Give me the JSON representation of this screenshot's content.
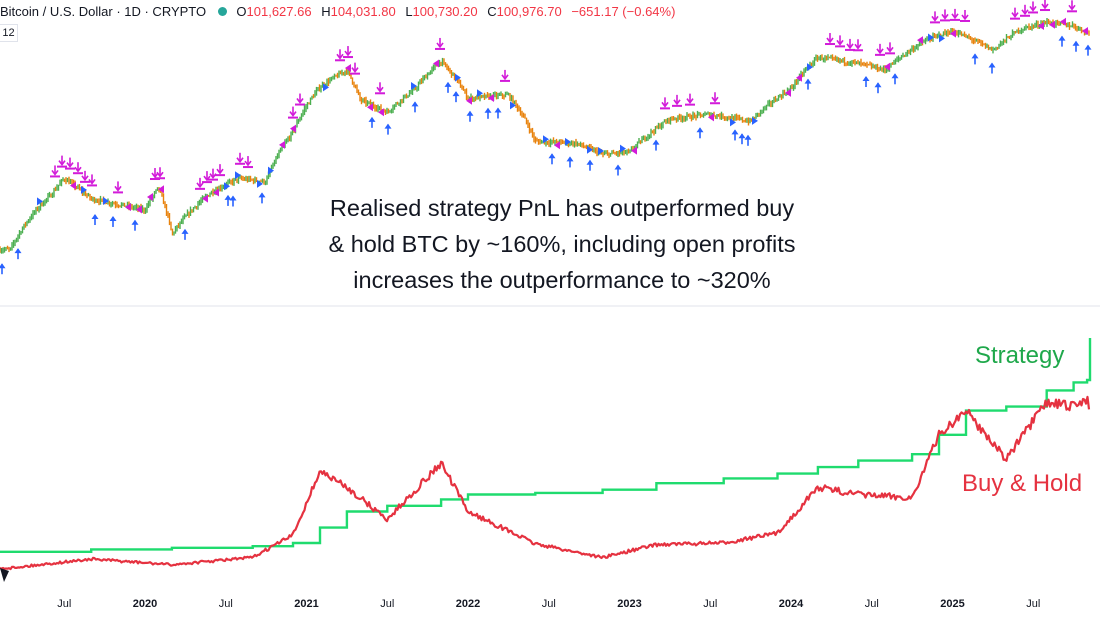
{
  "header": {
    "symbol": "Bitcoin / U.S. Dollar · 1D · CRYPTO",
    "open_key": "O",
    "open": "101,627.66",
    "high_key": "H",
    "high": "104,031.80",
    "low_key": "L",
    "low": "100,730.20",
    "close_key": "C",
    "close": "100,976.70",
    "change": "−651.17 (−0.64%)"
  },
  "badge": "12",
  "annotation": {
    "line1": "Realised strategy PnL has outperformed buy",
    "line2": "& hold BTC by ~160%, including open profits",
    "line3": "increases the outperformance to ~320%"
  },
  "legend": {
    "strategy": "Strategy",
    "buy_hold": "Buy & Hold"
  },
  "colors": {
    "strategy": "#1fdb6e",
    "buy_hold": "#e53240",
    "sell_marker": "#d21bd9",
    "buy_marker": "#2962ff",
    "price_up": "#4caf50",
    "price_down": "#e8820c"
  },
  "chart_data": [
    {
      "type": "line",
      "title": "",
      "x": [
        "2019-03",
        "2019-06",
        "2019-07",
        "2019-09",
        "2020-01",
        "2020-02",
        "2020-03",
        "2020-06",
        "2020-08",
        "2020-10",
        "2020-12",
        "2021-02",
        "2021-04",
        "2021-05",
        "2021-07",
        "2021-09",
        "2021-11",
        "2022-01",
        "2022-04",
        "2022-06",
        "2022-09",
        "2022-11",
        "2023-01",
        "2023-04",
        "2023-07",
        "2023-10",
        "2024-01",
        "2024-03",
        "2024-06",
        "2024-08",
        "2024-11",
        "2025-01",
        "2025-04",
        "2025-06",
        "2025-08",
        "2025-10",
        "2025-11"
      ],
      "series": [
        {
          "values": [
            4000,
            9000,
            11500,
            8500,
            7200,
            10000,
            5000,
            9500,
            11500,
            11000,
            23000,
            45000,
            58000,
            37000,
            31000,
            43000,
            66000,
            38000,
            40000,
            20000,
            19500,
            16500,
            17000,
            28000,
            30000,
            27000,
            44000,
            70000,
            64000,
            58000,
            90000,
            104000,
            78000,
            106000,
            118000,
            112000,
            101000
          ]
        }
      ],
      "xlabel": "",
      "ylabel": "",
      "scale": "log"
    },
    {
      "type": "line",
      "title": "",
      "x": [
        "2019-03",
        "2019-09",
        "2020-03",
        "2020-09",
        "2020-12",
        "2021-02",
        "2021-04",
        "2021-07",
        "2021-11",
        "2022-01",
        "2022-06",
        "2022-11",
        "2023-03",
        "2023-08",
        "2023-12",
        "2024-03",
        "2024-06",
        "2024-10",
        "2024-12",
        "2025-02",
        "2025-05",
        "2025-08",
        "2025-10",
        "2025-11",
        "2025-11-15"
      ],
      "series": [
        {
          "name": "Strategy",
          "values": [
            2.5,
            2.8,
            3.0,
            3.2,
            3.6,
            5.5,
            7.5,
            8.2,
            9.0,
            9.6,
            9.8,
            10.2,
            11.0,
            11.6,
            12.2,
            13.0,
            13.8,
            14.6,
            17.0,
            20.0,
            20.5,
            22.5,
            23.5,
            23.8,
            29.0
          ]
        },
        {
          "name": "Buy & Hold",
          "values": [
            0.5,
            1.6,
            0.9,
            1.8,
            4.6,
            12.5,
            10.5,
            6.5,
            13.5,
            7.5,
            3.5,
            1.8,
            3.4,
            3.6,
            4.8,
            10.5,
            9.6,
            9.2,
            17.0,
            20.0,
            14.0,
            21.0,
            20.5,
            21.5,
            19.0
          ]
        }
      ],
      "xlabel": "",
      "ylabel": ""
    }
  ],
  "x_ticks": [
    {
      "label": "Jul",
      "year": false,
      "x": "2019-07"
    },
    {
      "label": "2020",
      "year": true,
      "x": "2020-01"
    },
    {
      "label": "Jul",
      "year": false,
      "x": "2020-07"
    },
    {
      "label": "2021",
      "year": true,
      "x": "2021-01"
    },
    {
      "label": "Jul",
      "year": false,
      "x": "2021-07"
    },
    {
      "label": "2022",
      "year": true,
      "x": "2022-01"
    },
    {
      "label": "Jul",
      "year": false,
      "x": "2022-07"
    },
    {
      "label": "2023",
      "year": true,
      "x": "2023-01"
    },
    {
      "label": "Jul",
      "year": false,
      "x": "2023-07"
    },
    {
      "label": "2024",
      "year": true,
      "x": "2024-01"
    },
    {
      "label": "Jul",
      "year": false,
      "x": "2024-07"
    },
    {
      "label": "2025",
      "year": true,
      "x": "2025-01"
    },
    {
      "label": "Jul",
      "year": false,
      "x": "2025-07"
    }
  ]
}
